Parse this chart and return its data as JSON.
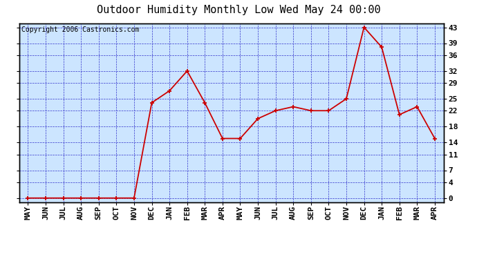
{
  "title": "Outdoor Humidity Monthly Low Wed May 24 00:00",
  "copyright": "Copyright 2006 Castronics.com",
  "x_labels": [
    "MAY",
    "JUN",
    "JUL",
    "AUG",
    "SEP",
    "OCT",
    "NOV",
    "DEC",
    "JAN",
    "FEB",
    "MAR",
    "APR",
    "MAY",
    "JUN",
    "JUL",
    "AUG",
    "SEP",
    "OCT",
    "NOV",
    "DEC",
    "JAN",
    "FEB",
    "MAR",
    "APR"
  ],
  "y_values": [
    0,
    0,
    0,
    0,
    0,
    0,
    0,
    24,
    27,
    32,
    24,
    15,
    15,
    20,
    22,
    23,
    22,
    22,
    25,
    43,
    38,
    21,
    23,
    15
  ],
  "y_ticks": [
    0,
    4,
    7,
    11,
    14,
    18,
    22,
    25,
    29,
    32,
    36,
    39,
    43
  ],
  "ylim_min": -1,
  "ylim_max": 44,
  "line_color": "#cc0000",
  "marker_color": "#cc0000",
  "bg_color": "#cce5ff",
  "grid_color": "#3333cc",
  "border_color": "#000000",
  "title_fontsize": 11,
  "copyright_fontsize": 7,
  "tick_fontsize": 8,
  "figwidth": 6.9,
  "figheight": 3.75,
  "dpi": 100
}
